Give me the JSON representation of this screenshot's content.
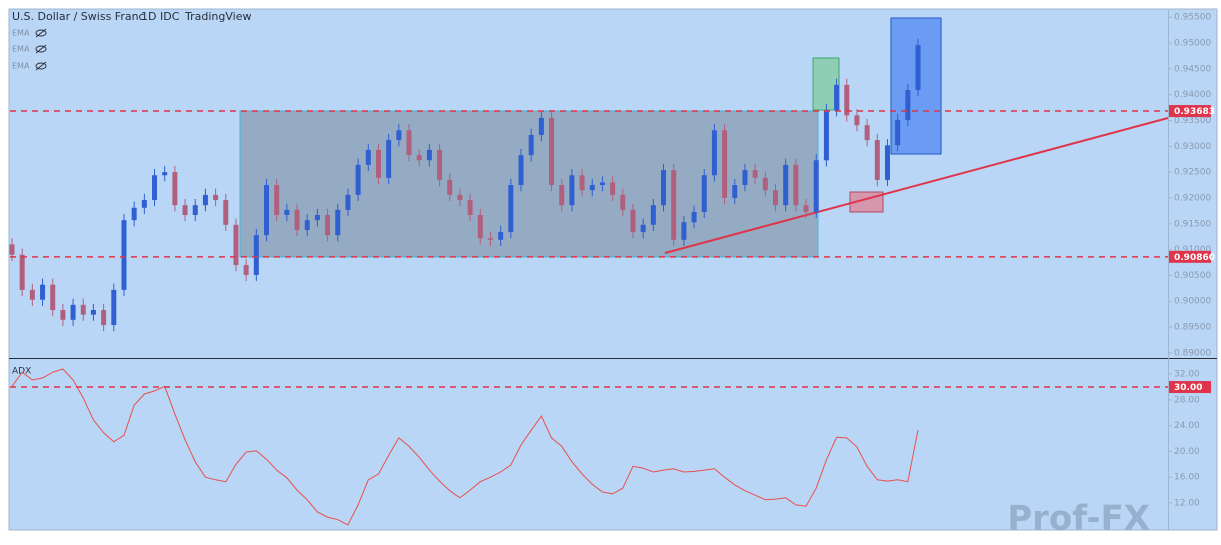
{
  "chart_data": [
    {
      "type": "candlestick",
      "title": "U.S. Dollar / Swiss Franc",
      "interval": "1D",
      "source": "IDC",
      "brand": "TradingView",
      "indicators": [
        "EMA",
        "EMA",
        "EMA"
      ],
      "open": [
        0.911,
        0.909,
        0.9022,
        0.9003,
        0.9032,
        0.8983,
        0.8964,
        0.8993,
        0.8974,
        0.8983,
        0.8954,
        0.9022,
        0.9157,
        0.9181,
        0.9196,
        0.9244,
        0.925,
        0.9186,
        0.9167,
        0.9186,
        0.9206,
        0.9196,
        0.9148,
        0.907,
        0.9051,
        0.9128,
        0.9225,
        0.9167,
        0.9177,
        0.9138,
        0.9157,
        0.9167,
        0.9128,
        0.9177,
        0.9206,
        0.9264,
        0.9293,
        0.9239,
        0.9312,
        0.9331,
        0.9283,
        0.9273,
        0.9293,
        0.9235,
        0.9206,
        0.9196,
        0.9167,
        0.9122,
        0.9119,
        0.9134,
        0.9225,
        0.9283,
        0.9322,
        0.9355,
        0.9225,
        0.9186,
        0.9244,
        0.9215,
        0.9225,
        0.923,
        0.9206,
        0.9177,
        0.9134,
        0.9148,
        0.9186,
        0.9254,
        0.9119,
        0.9153,
        0.9173,
        0.9244,
        0.9331,
        0.92,
        0.9225,
        0.9254,
        0.9239,
        0.9215,
        0.9186,
        0.9264,
        0.9186,
        0.9173,
        0.9273,
        0.937,
        0.9419,
        0.936,
        0.9341,
        0.9312,
        0.9235,
        0.9302,
        0.9351,
        0.9409
      ],
      "high": [
        0.9122,
        0.9102,
        0.9034,
        0.9044,
        0.9044,
        0.8995,
        0.9005,
        0.9005,
        0.8995,
        0.8995,
        0.9034,
        0.9169,
        0.9193,
        0.9208,
        0.9256,
        0.9262,
        0.9262,
        0.9198,
        0.9198,
        0.9218,
        0.9218,
        0.9208,
        0.916,
        0.9082,
        0.914,
        0.9237,
        0.9237,
        0.9189,
        0.9189,
        0.9169,
        0.9179,
        0.9179,
        0.9189,
        0.9218,
        0.9276,
        0.9305,
        0.9305,
        0.9324,
        0.9343,
        0.9343,
        0.9295,
        0.9305,
        0.9305,
        0.9247,
        0.9218,
        0.9208,
        0.9179,
        0.9134,
        0.9146,
        0.9237,
        0.9295,
        0.9334,
        0.9367,
        0.9367,
        0.9237,
        0.9256,
        0.9256,
        0.9237,
        0.9242,
        0.9242,
        0.9218,
        0.9189,
        0.916,
        0.9198,
        0.9266,
        0.9266,
        0.9165,
        0.9185,
        0.9256,
        0.9343,
        0.9343,
        0.9237,
        0.9266,
        0.9266,
        0.9251,
        0.9227,
        0.9276,
        0.9276,
        0.9198,
        0.9285,
        0.9382,
        0.9431,
        0.9431,
        0.9372,
        0.9353,
        0.9324,
        0.9314,
        0.9363,
        0.9421,
        0.9508
      ],
      "low": [
        0.9078,
        0.901,
        0.8991,
        0.8991,
        0.8971,
        0.8952,
        0.8952,
        0.8962,
        0.8962,
        0.8942,
        0.8942,
        0.901,
        0.9145,
        0.9169,
        0.9184,
        0.9232,
        0.9174,
        0.9155,
        0.9155,
        0.9174,
        0.9184,
        0.9136,
        0.9058,
        0.9039,
        0.9039,
        0.9116,
        0.9155,
        0.9155,
        0.9126,
        0.9126,
        0.9145,
        0.9116,
        0.9116,
        0.9165,
        0.9194,
        0.9252,
        0.9227,
        0.9227,
        0.93,
        0.9271,
        0.9261,
        0.9261,
        0.9223,
        0.9194,
        0.9184,
        0.9155,
        0.911,
        0.9107,
        0.9107,
        0.9122,
        0.9213,
        0.9271,
        0.931,
        0.9213,
        0.9174,
        0.9174,
        0.9203,
        0.9203,
        0.9213,
        0.9194,
        0.9165,
        0.9122,
        0.9122,
        0.9136,
        0.9174,
        0.9107,
        0.9107,
        0.9141,
        0.9161,
        0.9232,
        0.9188,
        0.9188,
        0.9213,
        0.9227,
        0.9203,
        0.9174,
        0.9174,
        0.9174,
        0.9161,
        0.9161,
        0.9261,
        0.9358,
        0.9348,
        0.9329,
        0.93,
        0.9223,
        0.9223,
        0.929,
        0.9339,
        0.9397
      ],
      "close": [
        0.909,
        0.9022,
        0.9003,
        0.9032,
        0.8983,
        0.8964,
        0.8993,
        0.8974,
        0.8983,
        0.8954,
        0.9022,
        0.9157,
        0.9181,
        0.9196,
        0.9244,
        0.925,
        0.9186,
        0.9167,
        0.9186,
        0.9206,
        0.9196,
        0.9148,
        0.907,
        0.9051,
        0.9128,
        0.9225,
        0.9167,
        0.9177,
        0.9138,
        0.9157,
        0.9167,
        0.9128,
        0.9177,
        0.9206,
        0.9264,
        0.9293,
        0.9239,
        0.9312,
        0.9331,
        0.9283,
        0.9273,
        0.9293,
        0.9235,
        0.9206,
        0.9196,
        0.9167,
        0.9122,
        0.9119,
        0.9134,
        0.9225,
        0.9283,
        0.9322,
        0.9355,
        0.9225,
        0.9186,
        0.9244,
        0.9215,
        0.9225,
        0.923,
        0.9206,
        0.9177,
        0.9134,
        0.9148,
        0.9186,
        0.9254,
        0.9119,
        0.9153,
        0.9173,
        0.9244,
        0.9331,
        0.92,
        0.9225,
        0.9254,
        0.9239,
        0.9215,
        0.9186,
        0.9264,
        0.9186,
        0.9173,
        0.9273,
        0.937,
        0.9419,
        0.936,
        0.9341,
        0.9312,
        0.9235,
        0.9302,
        0.9351,
        0.9409,
        0.9496
      ],
      "up_color": "#2f5fd0",
      "down_color": "#b0607e",
      "ylim": [
        0.8892,
        0.9564
      ],
      "yticks": [
        {
          "value": 0.955,
          "label": "0.95500"
        },
        {
          "value": 0.95,
          "label": "0.95000"
        },
        {
          "value": 0.945,
          "label": "0.94500"
        },
        {
          "value": 0.94,
          "label": "0.94000"
        },
        {
          "value": 0.935,
          "label": "0.93500"
        },
        {
          "value": 0.93,
          "label": "0.93000"
        },
        {
          "value": 0.925,
          "label": "0.92500"
        },
        {
          "value": 0.92,
          "label": "0.92000"
        },
        {
          "value": 0.915,
          "label": "0.91500"
        },
        {
          "value": 0.91,
          "label": "0.91000"
        },
        {
          "value": 0.905,
          "label": "0.90500"
        },
        {
          "value": 0.9,
          "label": "0.90000"
        },
        {
          "value": 0.895,
          "label": "0.89500"
        },
        {
          "value": 0.89,
          "label": "0.89000"
        }
      ],
      "levels": [
        0.93683,
        {
          "value": 0.9086,
          "label": "0.90860"
        }
      ],
      "level_color": "#e0344a"
    },
    {
      "type": "line",
      "title": "ADX",
      "values": [
        30.1,
        32.3,
        31.1,
        31.4,
        32.3,
        32.8,
        31.1,
        28.3,
        24.9,
        22.9,
        21.5,
        22.5,
        27.2,
        28.9,
        29.4,
        30.1,
        25.8,
        21.8,
        18.4,
        16.0,
        15.6,
        15.3,
        18.0,
        19.9,
        20.1,
        18.8,
        17.1,
        15.9,
        14.0,
        12.5,
        10.6,
        9.8,
        9.4,
        8.6,
        11.7,
        15.6,
        16.5,
        19.4,
        22.1,
        20.8,
        19.1,
        17.1,
        15.4,
        13.9,
        12.8,
        14.0,
        15.3,
        16.0,
        16.8,
        17.9,
        21.0,
        23.3,
        25.5,
        22.1,
        20.8,
        18.4,
        16.5,
        14.9,
        13.7,
        13.4,
        14.3,
        17.7,
        17.4,
        16.8,
        17.1,
        17.3,
        16.8,
        16.9,
        17.1,
        17.3,
        16.0,
        14.8,
        13.9,
        13.2,
        12.5,
        12.6,
        12.8,
        11.7,
        11.5,
        14.3,
        18.7,
        22.2,
        22.1,
        20.7,
        17.7,
        15.6,
        15.4,
        15.6,
        15.3,
        23.3
      ],
      "color": "#e8504a",
      "ylim": [
        7.8,
        34.2
      ],
      "yticks": [
        {
          "value": 12,
          "label": "12.00"
        },
        {
          "value": 16,
          "label": "16.00"
        },
        {
          "value": 20,
          "label": "20.00"
        },
        {
          "value": 24,
          "label": "24.00"
        },
        {
          "value": 28,
          "label": "28.00"
        },
        {
          "value": 32,
          "label": "32.00"
        }
      ],
      "levels": [
        {
          "value": 30,
          "label": "30.00"
        }
      ],
      "level_color": "#e0344a"
    }
  ],
  "watermark": "Prof-FX"
}
